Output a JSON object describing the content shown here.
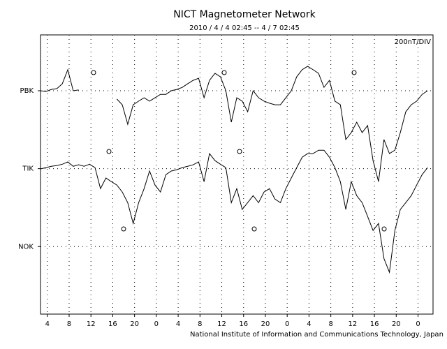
{
  "chart_data": {
    "type": "line",
    "title": "NICT Magnetometer Network",
    "subtitle": "2010 / 4 / 4  02:45 -- 4 / 7  02:45",
    "scale_label": "200nT/DIV",
    "credit": "National Institute of Information and Communications Technology, Japan",
    "color": "#000000",
    "grid": true,
    "xlim": [
      0,
      72
    ],
    "ylim": [
      -2.6,
      8.15
    ],
    "xticks": [
      {
        "value": 1.25,
        "label": "4"
      },
      {
        "value": 5.25,
        "label": "8"
      },
      {
        "value": 9.25,
        "label": "12"
      },
      {
        "value": 13.25,
        "label": "16"
      },
      {
        "value": 17.25,
        "label": "20"
      },
      {
        "value": 21.25,
        "label": "0"
      },
      {
        "value": 25.25,
        "label": "4"
      },
      {
        "value": 29.25,
        "label": "8"
      },
      {
        "value": 33.25,
        "label": "12"
      },
      {
        "value": 37.25,
        "label": "16"
      },
      {
        "value": 41.25,
        "label": "20"
      },
      {
        "value": 45.25,
        "label": "0"
      },
      {
        "value": 49.25,
        "label": "4"
      },
      {
        "value": 53.25,
        "label": "8"
      },
      {
        "value": 57.25,
        "label": "12"
      },
      {
        "value": 61.25,
        "label": "16"
      },
      {
        "value": 65.25,
        "label": "20"
      },
      {
        "value": 69.25,
        "label": "0"
      }
    ],
    "yticks": [
      {
        "value": 6,
        "label": "PBK"
      },
      {
        "value": 3,
        "label": "TIK"
      },
      {
        "value": 0,
        "label": "NOK"
      }
    ],
    "x": [
      0,
      1,
      2,
      3,
      4,
      5,
      6,
      7,
      8,
      9,
      10,
      11,
      12,
      13,
      14,
      15,
      16,
      17,
      18,
      19,
      20,
      21,
      22,
      23,
      24,
      25,
      26,
      27,
      28,
      29,
      30,
      31,
      32,
      33,
      34,
      35,
      36,
      37,
      38,
      39,
      40,
      41,
      42,
      43,
      44,
      45,
      46,
      47,
      48,
      49,
      50,
      51,
      52,
      53,
      54,
      55,
      56,
      57,
      58,
      59,
      60,
      61,
      62,
      63,
      64,
      65,
      66,
      67,
      68,
      69,
      70,
      71
    ],
    "series": [
      {
        "color": "#000000",
        "values": [
          6.0,
          5.97,
          6.05,
          6.08,
          6.27,
          6.81,
          6.0,
          6.03,
          null,
          null,
          null,
          null,
          null,
          null,
          5.68,
          5.46,
          4.71,
          5.46,
          5.6,
          5.73,
          5.6,
          5.73,
          5.86,
          5.86,
          6.0,
          6.05,
          6.13,
          6.27,
          6.4,
          6.48,
          5.73,
          6.4,
          6.67,
          6.54,
          6.0,
          4.79,
          5.73,
          5.6,
          5.19,
          6.0,
          5.73,
          5.6,
          5.52,
          5.46,
          5.46,
          5.73,
          6.0,
          6.54,
          6.81,
          6.94,
          6.81,
          6.67,
          6.13,
          6.4,
          5.6,
          5.46,
          4.12,
          4.39,
          4.79,
          4.39,
          4.66,
          3.31,
          2.5,
          4.12,
          3.58,
          3.71,
          4.39,
          5.19,
          5.46,
          5.6,
          5.86,
          6.0
        ]
      },
      {
        "color": "#000000",
        "values": [
          2.99,
          3.04,
          3.09,
          3.12,
          3.17,
          3.26,
          3.09,
          3.15,
          3.09,
          3.17,
          3.04,
          2.23,
          2.64,
          2.5,
          2.37,
          2.1,
          1.69,
          0.89,
          1.69,
          2.23,
          2.91,
          2.37,
          2.1,
          2.77,
          2.91,
          2.96,
          3.04,
          3.09,
          3.15,
          3.26,
          2.5,
          3.58,
          3.31,
          3.17,
          3.04,
          1.69,
          2.23,
          1.43,
          1.69,
          1.96,
          1.69,
          2.1,
          2.23,
          1.83,
          1.69,
          2.23,
          2.64,
          3.04,
          3.44,
          3.58,
          3.58,
          3.71,
          3.71,
          3.44,
          3.04,
          2.5,
          1.43,
          2.5,
          1.96,
          1.69,
          1.16,
          0.62,
          0.89,
          -0.46,
          -0.99,
          0.62,
          1.43,
          1.69,
          1.96,
          2.37,
          2.77,
          3.04
        ]
      }
    ]
  }
}
